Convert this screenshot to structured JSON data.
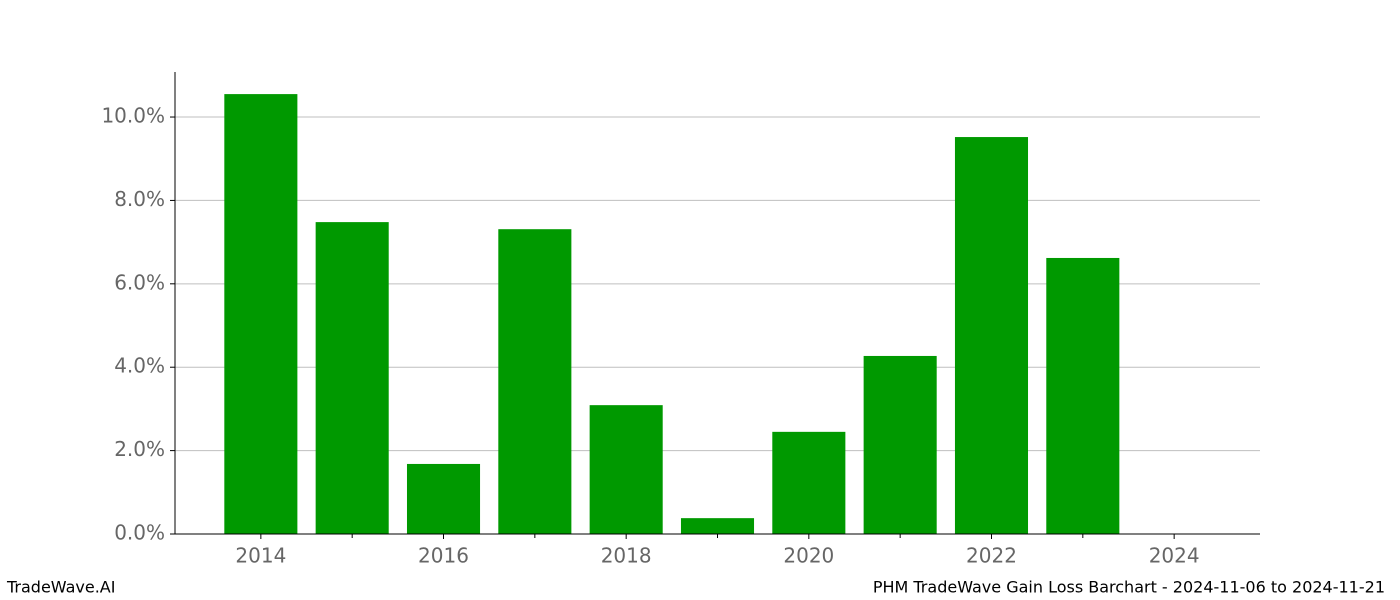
{
  "chart_data": {
    "type": "bar",
    "title": "PHM TradeWave Gain Loss Barchart - 2024-11-06 to 2024-11-21",
    "watermark": "TradeWave.AI",
    "x": [
      2014,
      2015,
      2016,
      2017,
      2018,
      2019,
      2020,
      2021,
      2022,
      2023,
      2024
    ],
    "values": [
      10.55,
      7.48,
      1.68,
      7.31,
      3.09,
      0.38,
      2.45,
      4.27,
      9.52,
      6.62,
      0
    ],
    "color": "#009900",
    "xlim": [
      2013.06,
      2024.94
    ],
    "xticks": [
      2014,
      2016,
      2018,
      2020,
      2022,
      2024
    ],
    "xminorticks": [
      2015,
      2017,
      2019,
      2021,
      2023
    ],
    "ylim": [
      0,
      11.08
    ],
    "yticks": [
      {
        "value": 0,
        "label": "0.0%"
      },
      {
        "value": 2,
        "label": "2.0%"
      },
      {
        "value": 4,
        "label": "4.0%"
      },
      {
        "value": 6,
        "label": "6.0%"
      },
      {
        "value": 8,
        "label": "8.0%"
      },
      {
        "value": 10,
        "label": "10.0%"
      }
    ],
    "grid": true
  }
}
